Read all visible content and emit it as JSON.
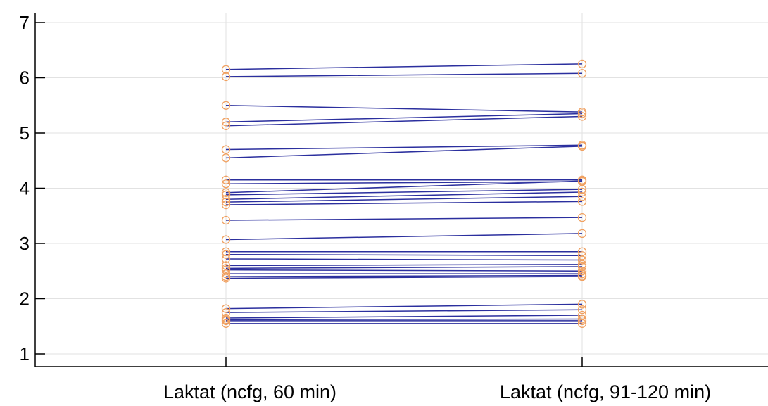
{
  "chart_data": {
    "type": "line",
    "title": "",
    "xlabel": "",
    "ylabel": "",
    "categories": [
      "Laktat (ncfg, 60 min)",
      "Laktat (ncfg, 91-120 min)"
    ],
    "ylim": [
      1,
      7
    ],
    "yticks": [
      1,
      2,
      3,
      4,
      5,
      6,
      7
    ],
    "grid": true,
    "legend": "none",
    "line_color": "#2b2f9e",
    "marker_color": "#f0a060",
    "marker": "open-circle",
    "series": [
      {
        "values": [
          6.15,
          6.25
        ]
      },
      {
        "values": [
          6.02,
          6.08
        ]
      },
      {
        "values": [
          5.5,
          5.38
        ]
      },
      {
        "values": [
          5.2,
          5.35
        ]
      },
      {
        "values": [
          5.13,
          5.3
        ]
      },
      {
        "values": [
          4.7,
          4.78
        ]
      },
      {
        "values": [
          4.55,
          4.76
        ]
      },
      {
        "values": [
          4.15,
          4.15
        ]
      },
      {
        "values": [
          4.08,
          4.12
        ]
      },
      {
        "values": [
          3.92,
          4.13
        ]
      },
      {
        "values": [
          3.88,
          3.98
        ]
      },
      {
        "values": [
          3.8,
          3.93
        ]
      },
      {
        "values": [
          3.75,
          3.85
        ]
      },
      {
        "values": [
          3.7,
          3.76
        ]
      },
      {
        "values": [
          3.42,
          3.47
        ]
      },
      {
        "values": [
          3.07,
          3.18
        ]
      },
      {
        "values": [
          2.85,
          2.85
        ]
      },
      {
        "values": [
          2.8,
          2.78
        ]
      },
      {
        "values": [
          2.72,
          2.7
        ]
      },
      {
        "values": [
          2.6,
          2.62
        ]
      },
      {
        "values": [
          2.55,
          2.58
        ]
      },
      {
        "values": [
          2.52,
          2.5
        ]
      },
      {
        "values": [
          2.45,
          2.45
        ]
      },
      {
        "values": [
          2.4,
          2.42
        ]
      },
      {
        "values": [
          2.37,
          2.4
        ]
      },
      {
        "values": [
          1.82,
          1.9
        ]
      },
      {
        "values": [
          1.75,
          1.8
        ]
      },
      {
        "values": [
          1.65,
          1.7
        ]
      },
      {
        "values": [
          1.62,
          1.63
        ]
      },
      {
        "values": [
          1.6,
          1.6
        ]
      },
      {
        "values": [
          1.55,
          1.55
        ]
      }
    ]
  }
}
